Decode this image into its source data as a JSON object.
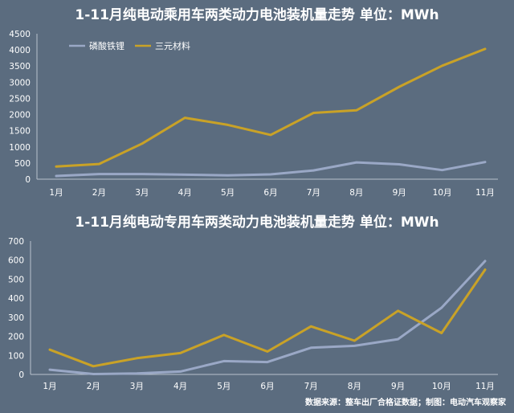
{
  "colors": {
    "background": "#5b6c7f",
    "lfp": "#9aa8c6",
    "ternary": "#c9a227",
    "axis": "#b8c2cc",
    "text": "#ffffff"
  },
  "chart_data": [
    {
      "type": "line",
      "title": "1-11月纯电动乘用车两类动力电池装机量走势  单位：MWh",
      "categories": [
        "1月",
        "2月",
        "3月",
        "4月",
        "5月",
        "6月",
        "7月",
        "8月",
        "9月",
        "10月",
        "11月"
      ],
      "ylim": [
        0,
        4500
      ],
      "yticks": [
        0,
        500,
        1000,
        1500,
        2000,
        2500,
        3000,
        3500,
        4000,
        4500
      ],
      "legend": "top-left",
      "series": [
        {
          "name": "磷酸铁锂",
          "values": [
            100,
            160,
            160,
            140,
            120,
            150,
            270,
            520,
            460,
            280,
            530
          ]
        },
        {
          "name": "三元材料",
          "values": [
            390,
            470,
            1100,
            1900,
            1680,
            1370,
            2050,
            2130,
            2860,
            3510,
            4030
          ]
        }
      ]
    },
    {
      "type": "line",
      "title": "1-11月纯电动专用车两类动力电池装机量走势 单位：MWh",
      "categories": [
        "1月",
        "2月",
        "3月",
        "4月",
        "5月",
        "6月",
        "7月",
        "8月",
        "9月",
        "10月",
        "11月"
      ],
      "ylim": [
        0,
        700
      ],
      "yticks": [
        0,
        100,
        200,
        300,
        400,
        500,
        600,
        700
      ],
      "series": [
        {
          "name": "磷酸铁锂",
          "values": [
            25,
            2,
            5,
            15,
            70,
            65,
            140,
            150,
            185,
            350,
            595
          ]
        },
        {
          "name": "三元材料",
          "values": [
            130,
            43,
            85,
            112,
            207,
            120,
            252,
            177,
            334,
            217,
            550
          ]
        }
      ]
    }
  ],
  "source_note": "数据来源：整车出厂合格证数据；制图：电动汽车观察家"
}
